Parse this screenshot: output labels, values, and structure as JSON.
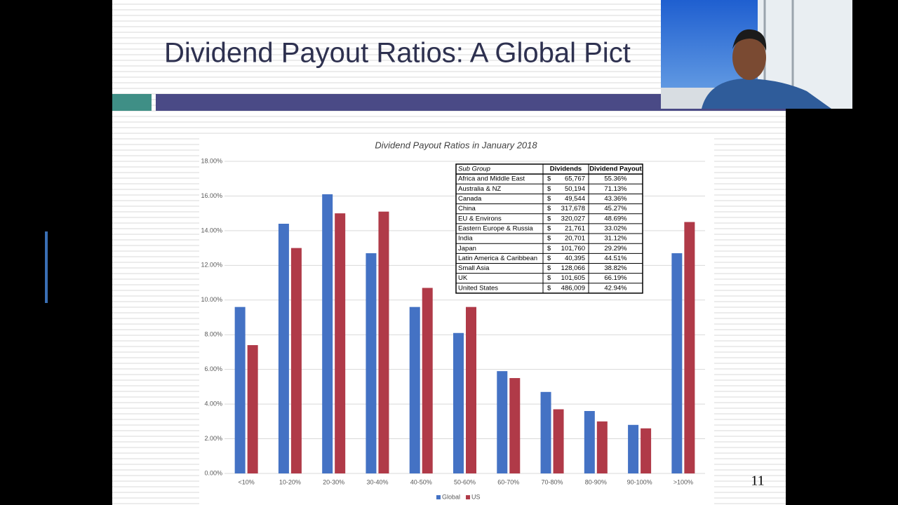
{
  "slide": {
    "title": "Dividend Payout Ratios: A Global Pict",
    "page_number": "11"
  },
  "chart_data": {
    "type": "bar",
    "title": "Dividend Payout Ratios in January 2018",
    "categories": [
      "<10%",
      "10-20%",
      "20-30%",
      "30-40%",
      "40-50%",
      "50-60%",
      "60-70%",
      "70-80%",
      "80-90%",
      "90-100%",
      ">100%"
    ],
    "series": [
      {
        "name": "Global",
        "color": "#4472c4",
        "values": [
          9.6,
          14.4,
          16.1,
          12.7,
          9.6,
          8.1,
          5.9,
          4.7,
          3.6,
          2.8,
          12.7
        ]
      },
      {
        "name": "US",
        "color": "#b03a48",
        "values": [
          7.4,
          13.0,
          15.0,
          15.1,
          10.7,
          9.6,
          5.5,
          3.7,
          3.0,
          2.6,
          14.5
        ]
      }
    ],
    "ylim": [
      0,
      18
    ],
    "yticks": [
      {
        "value": 0,
        "label": "0.00%"
      },
      {
        "value": 2,
        "label": "2.00%"
      },
      {
        "value": 4,
        "label": "4.00%"
      },
      {
        "value": 6,
        "label": "6.00%"
      },
      {
        "value": 8,
        "label": "8.00%"
      },
      {
        "value": 10,
        "label": "10.00%"
      },
      {
        "value": 12,
        "label": "12.00%"
      },
      {
        "value": 14,
        "label": "14.00%"
      },
      {
        "value": 16,
        "label": "16.00%"
      },
      {
        "value": 18,
        "label": "18.00%"
      }
    ],
    "grid": true,
    "legend": "bottom"
  },
  "table": {
    "header": [
      "Sub Group",
      "Dividends",
      "Dividend Payout"
    ],
    "rows": [
      [
        "Africa and Middle East",
        "$",
        "65,767",
        "55.36%"
      ],
      [
        "Australia & NZ",
        "$",
        "50,194",
        "71.13%"
      ],
      [
        "Canada",
        "$",
        "49,544",
        "43.36%"
      ],
      [
        "China",
        "$",
        "317,678",
        "45.27%"
      ],
      [
        "EU & Environs",
        "$",
        "320,027",
        "48.69%"
      ],
      [
        "Eastern Europe & Russia",
        "$",
        "21,761",
        "33.02%"
      ],
      [
        "India",
        "$",
        "20,701",
        "31.12%"
      ],
      [
        "Japan",
        "$",
        "101,760",
        "29.29%"
      ],
      [
        "Latin America & Caribbean",
        "$",
        "40,395",
        "44.51%"
      ],
      [
        "Small Asia",
        "$",
        "128,066",
        "38.82%"
      ],
      [
        "UK",
        "$",
        "101,605",
        "66.19%"
      ],
      [
        "United States",
        "$",
        "486,009",
        "42.94%"
      ]
    ]
  }
}
